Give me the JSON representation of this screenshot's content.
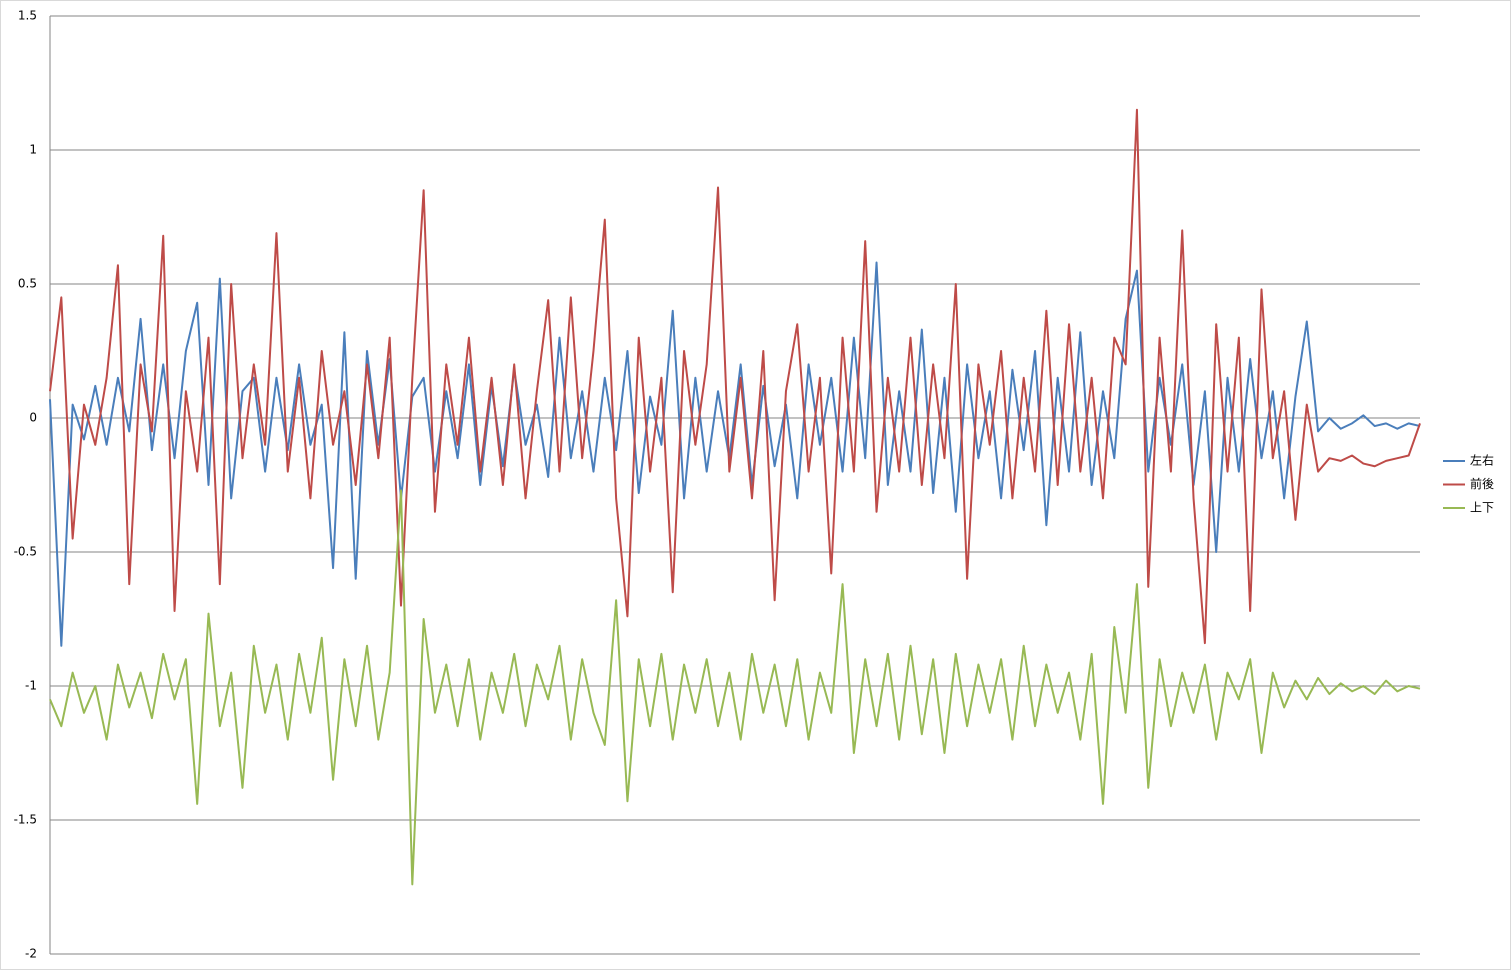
{
  "chart_data": {
    "type": "line",
    "series": [
      {
        "name": "左右",
        "color": "#4a7ebb",
        "values": [
          0.07,
          -0.85,
          0.05,
          -0.08,
          0.12,
          -0.1,
          0.15,
          -0.05,
          0.37,
          -0.12,
          0.2,
          -0.15,
          0.25,
          0.43,
          -0.25,
          0.52,
          -0.3,
          0.1,
          0.15,
          -0.2,
          0.15,
          -0.12,
          0.2,
          -0.1,
          0.05,
          -0.56,
          0.32,
          -0.6,
          0.25,
          -0.1,
          0.22,
          -0.3,
          0.08,
          0.15,
          -0.2,
          0.1,
          -0.15,
          0.2,
          -0.25,
          0.12,
          -0.18,
          0.18,
          -0.1,
          0.05,
          -0.22,
          0.3,
          -0.15,
          0.1,
          -0.2,
          0.15,
          -0.12,
          0.25,
          -0.28,
          0.08,
          -0.1,
          0.4,
          -0.3,
          0.15,
          -0.2,
          0.1,
          -0.15,
          0.2,
          -0.25,
          0.12,
          -0.18,
          0.05,
          -0.3,
          0.2,
          -0.1,
          0.15,
          -0.2,
          0.3,
          -0.15,
          0.58,
          -0.25,
          0.1,
          -0.2,
          0.33,
          -0.28,
          0.15,
          -0.35,
          0.2,
          -0.15,
          0.1,
          -0.3,
          0.18,
          -0.12,
          0.25,
          -0.4,
          0.15,
          -0.2,
          0.32,
          -0.25,
          0.1,
          -0.15,
          0.37,
          0.55,
          -0.2,
          0.15,
          -0.1,
          0.2,
          -0.25,
          0.1,
          -0.5,
          0.15,
          -0.2,
          0.22,
          -0.15,
          0.1,
          -0.3,
          0.08,
          0.36,
          -0.05,
          0.0,
          -0.04,
          -0.02,
          0.01,
          -0.03,
          -0.02,
          -0.04,
          -0.02,
          -0.03
        ]
      },
      {
        "name": "前後",
        "color": "#be4b48",
        "values": [
          0.1,
          0.45,
          -0.45,
          0.05,
          -0.1,
          0.15,
          0.57,
          -0.62,
          0.2,
          -0.05,
          0.68,
          -0.72,
          0.1,
          -0.2,
          0.3,
          -0.62,
          0.5,
          -0.15,
          0.2,
          -0.1,
          0.69,
          -0.2,
          0.15,
          -0.3,
          0.25,
          -0.1,
          0.1,
          -0.25,
          0.2,
          -0.15,
          0.3,
          -0.7,
          0.15,
          0.85,
          -0.35,
          0.2,
          -0.1,
          0.3,
          -0.2,
          0.15,
          -0.25,
          0.2,
          -0.3,
          0.1,
          0.44,
          -0.2,
          0.45,
          -0.15,
          0.25,
          0.74,
          -0.3,
          -0.74,
          0.3,
          -0.2,
          0.15,
          -0.65,
          0.25,
          -0.1,
          0.2,
          0.86,
          -0.2,
          0.15,
          -0.3,
          0.25,
          -0.68,
          0.1,
          0.35,
          -0.2,
          0.15,
          -0.58,
          0.3,
          -0.2,
          0.66,
          -0.35,
          0.15,
          -0.2,
          0.3,
          -0.25,
          0.2,
          -0.15,
          0.5,
          -0.6,
          0.2,
          -0.1,
          0.25,
          -0.3,
          0.15,
          -0.2,
          0.4,
          -0.25,
          0.35,
          -0.2,
          0.15,
          -0.3,
          0.3,
          0.2,
          1.15,
          -0.63,
          0.3,
          -0.2,
          0.7,
          -0.3,
          -0.84,
          0.35,
          -0.2,
          0.3,
          -0.72,
          0.48,
          -0.15,
          0.1,
          -0.38,
          0.05,
          -0.2,
          -0.15,
          -0.16,
          -0.14,
          -0.17,
          -0.18,
          -0.16,
          -0.15,
          -0.14,
          -0.02
        ]
      },
      {
        "name": "上下",
        "color": "#98b954",
        "values": [
          -1.05,
          -1.15,
          -0.95,
          -1.1,
          -1.0,
          -1.2,
          -0.92,
          -1.08,
          -0.95,
          -1.12,
          -0.88,
          -1.05,
          -0.9,
          -1.44,
          -0.73,
          -1.15,
          -0.95,
          -1.38,
          -0.85,
          -1.1,
          -0.92,
          -1.2,
          -0.88,
          -1.1,
          -0.82,
          -1.35,
          -0.9,
          -1.15,
          -0.85,
          -1.2,
          -0.95,
          -0.27,
          -1.74,
          -0.75,
          -1.1,
          -0.92,
          -1.15,
          -0.9,
          -1.2,
          -0.95,
          -1.1,
          -0.88,
          -1.15,
          -0.92,
          -1.05,
          -0.85,
          -1.2,
          -0.9,
          -1.1,
          -1.22,
          -0.68,
          -1.43,
          -0.9,
          -1.15,
          -0.88,
          -1.2,
          -0.92,
          -1.1,
          -0.9,
          -1.15,
          -0.95,
          -1.2,
          -0.88,
          -1.1,
          -0.92,
          -1.15,
          -0.9,
          -1.2,
          -0.95,
          -1.1,
          -0.62,
          -1.25,
          -0.9,
          -1.15,
          -0.88,
          -1.2,
          -0.85,
          -1.18,
          -0.9,
          -1.25,
          -0.88,
          -1.15,
          -0.92,
          -1.1,
          -0.9,
          -1.2,
          -0.85,
          -1.15,
          -0.92,
          -1.1,
          -0.95,
          -1.2,
          -0.88,
          -1.44,
          -0.78,
          -1.1,
          -0.62,
          -1.38,
          -0.9,
          -1.15,
          -0.95,
          -1.1,
          -0.92,
          -1.2,
          -0.95,
          -1.05,
          -0.9,
          -1.25,
          -0.95,
          -1.08,
          -0.98,
          -1.05,
          -0.97,
          -1.03,
          -0.99,
          -1.02,
          -1.0,
          -1.03,
          -0.98,
          -1.02,
          -1.0,
          -1.01
        ]
      }
    ],
    "ylim": [
      -2,
      1.5
    ],
    "yticks": [
      1.5,
      1,
      0.5,
      0,
      -0.5,
      -1,
      -1.5,
      -2
    ],
    "grid": true,
    "legend": "right"
  }
}
